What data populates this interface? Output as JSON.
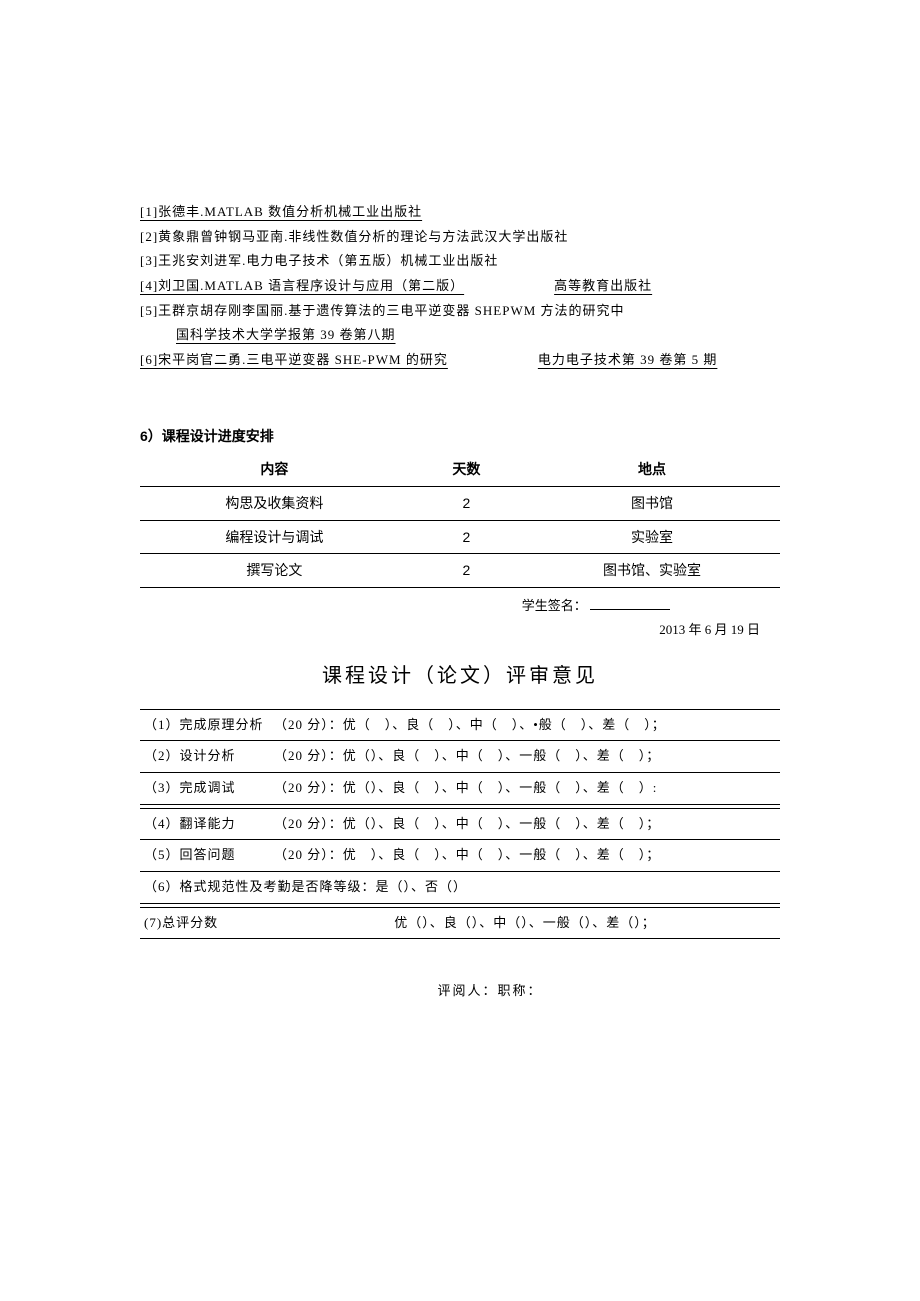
{
  "references": {
    "r1": "[1]张德丰.MATLAB 数值分析机械工业出版社",
    "r2": "[2]黄象鼎曾钟钢马亚南.非线性数值分析的理论与方法武汉大学出版社",
    "r3": "[3]王兆安刘进军.电力电子技术（第五版）机械工业出版社",
    "r4_a": "[4]刘卫国.MATLAB 语言程序设计与应用（第二版）",
    "r4_b": "高等教育出版社",
    "r5_a": "[5]王群京胡存刚李国丽.基于遗传算法的三电平逆变器 SHEPWM 方法的研究中",
    "r5_b": "国科学技术大学学报第 39 卷第八期",
    "r6_a": "[6]宋平岗官二勇.三电平逆变器 SHE-PWM 的研究",
    "r6_b": "电力电子技术第 39 卷第 5 期"
  },
  "schedule": {
    "title": "6）课程设计进度安排",
    "headers": {
      "c1": "内容",
      "c2": "天数",
      "c3": "地点"
    },
    "rows": [
      {
        "c1": "构思及收集资料",
        "c2": "2",
        "c3": "图书馆"
      },
      {
        "c1": "编程设计与调试",
        "c2": "2",
        "c3": "实验室"
      },
      {
        "c1": "撰写论文",
        "c2": "2",
        "c3": "图书馆、实验室"
      }
    ],
    "sign_label": "学生签名：",
    "date": "2013 年 6 月 19 日"
  },
  "review": {
    "title": "课程设计（论文）评审意见",
    "rows": [
      {
        "label": "（1）完成原理分析",
        "text": "（20 分）：优（　）、良（　）、中（　）、•般（　）、差（　）；"
      },
      {
        "label": "（2）设计分析",
        "text": "（20 分）：优（）、良（　）、中（　）、一般（　）、差（　）；"
      },
      {
        "label": "（3）完成调试",
        "text": "（20 分）：优（）、良（　）、中（　）、一般（　）、差（　）:"
      },
      {
        "label": "（4）翻译能力",
        "text": "（20 分）：优（）、良（　）、中（　）、一般（　）、差（　）；"
      },
      {
        "label": "（5）回答问题",
        "text": "（20 分）：优　）、良（　）、中（　）、一般（　）、差（　）；"
      }
    ],
    "row6": "（6）格式规范性及考勤是否降等级：是（）、否（）",
    "row7_label": "(7)总评分数",
    "row7_text": "优（）、良（）、中（）、一般（）、差（）；",
    "reviewer": "评阅人：职称："
  }
}
